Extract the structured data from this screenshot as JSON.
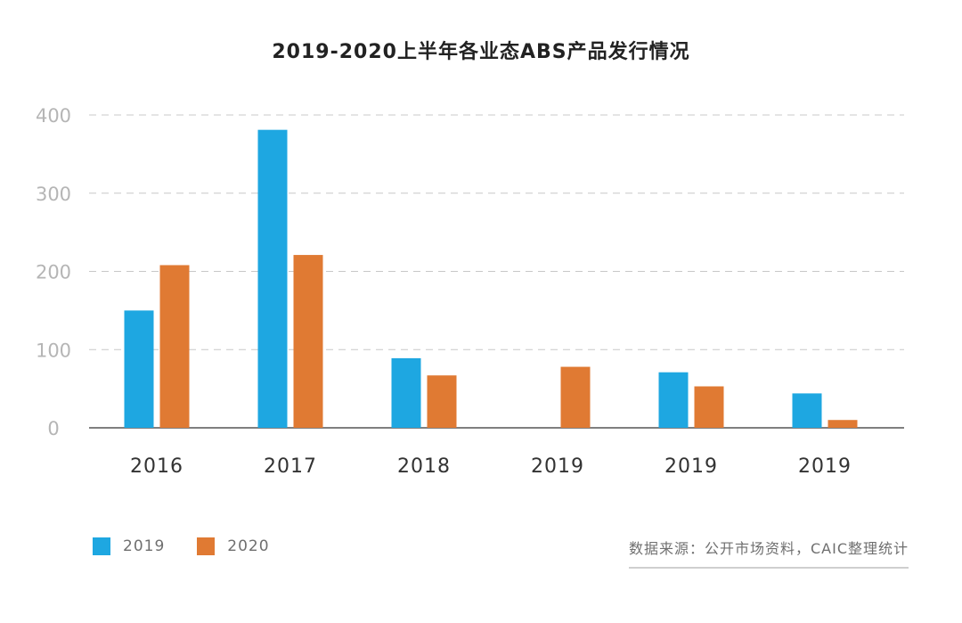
{
  "chart_data": {
    "type": "bar",
    "title": "2019-2020上半年各业态ABS产品发行情况",
    "categories": [
      "2016",
      "2017",
      "2018",
      "2019",
      "2019",
      "2019"
    ],
    "series": [
      {
        "name": "2019",
        "values": [
          150,
          381,
          89,
          0,
          71,
          44
        ],
        "color": "#1EA7E1"
      },
      {
        "name": "2020",
        "values": [
          208,
          221,
          67,
          78,
          53,
          10
        ],
        "color": "#E07A33"
      }
    ],
    "yticks": [
      0,
      100,
      200,
      300,
      400
    ],
    "ylim": [
      0,
      400
    ],
    "grid": true,
    "legend_position": "bottom-left"
  },
  "source_note": "数据来源：公开市场资料，CAIC整理统计"
}
